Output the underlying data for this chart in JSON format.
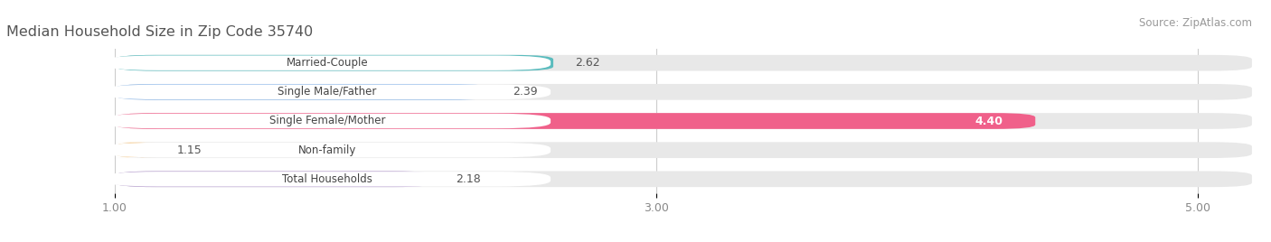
{
  "title": "Median Household Size in Zip Code 35740",
  "source": "Source: ZipAtlas.com",
  "categories": [
    "Married-Couple",
    "Single Male/Father",
    "Single Female/Mother",
    "Non-family",
    "Total Households"
  ],
  "values": [
    2.62,
    2.39,
    4.4,
    1.15,
    2.18
  ],
  "bar_colors": [
    "#5bbcbe",
    "#8eb8e8",
    "#f0608a",
    "#f5c98a",
    "#b8a0d0"
  ],
  "bar_bg_color": "#e8e8e8",
  "label_bg_color": "#ffffff",
  "label_text_color": "#444444",
  "value_color_outside": "#555555",
  "value_color_inside": "#ffffff",
  "title_color": "#555555",
  "source_color": "#999999",
  "fig_bg_color": "#ffffff",
  "xlim_min": 0.6,
  "xlim_max": 5.2,
  "xticks": [
    1.0,
    3.0,
    5.0
  ],
  "bar_height": 0.55,
  "figsize": [
    14.06,
    2.68
  ],
  "dpi": 100
}
